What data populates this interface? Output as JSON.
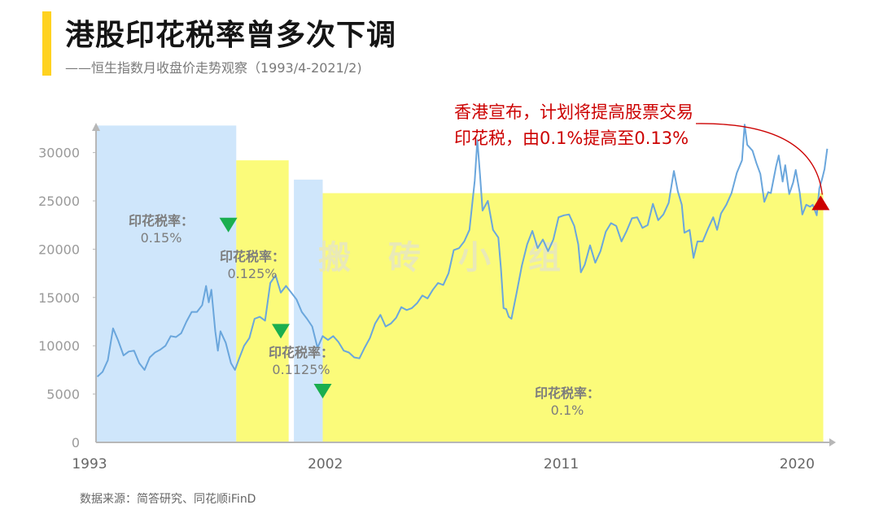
{
  "header": {
    "title": "港股印花税率曾多次下调",
    "subtitle": "——恒生指数月收盘价走势观察（1993/4-2021/2)"
  },
  "footer": {
    "source": "数据来源：简答研究、同花顺iFinD"
  },
  "watermark": "搬 砖 小 组",
  "annotation": {
    "line1": "香港宣布，计划将提高股票交易",
    "line2": "印花税，由0.1%提高至0.13%"
  },
  "colors": {
    "line": "#6aa6dc",
    "band_blue": "#cfe6fb",
    "band_yellow": "#fbfb7a",
    "axis": "#b7b7b7",
    "tick_text": "#9a9a9a",
    "label_text": "#7d7d7d",
    "down_marker": "#1aae4f",
    "up_marker": "#cc0000",
    "annotation_text": "#cc0000",
    "title_accent": "#ffd21f"
  },
  "chart_data": {
    "type": "line",
    "series_name": "恒生指数月收盘价",
    "x_range": [
      1993.25,
      2021.17
    ],
    "ylim": [
      0,
      33000
    ],
    "y_ticks": [
      0,
      5000,
      10000,
      15000,
      20000,
      25000,
      30000
    ],
    "x_ticks": [
      "1993",
      "2002",
      "2011",
      "2020"
    ],
    "rate_bands": [
      {
        "start": 1993.25,
        "end": 1998.6,
        "rate_text": "印花税率：",
        "rate_value": "0.15%",
        "color": "blue",
        "height": 32800
      },
      {
        "start": 1998.6,
        "end": 2000.6,
        "rate_text": "印花税率：",
        "rate_value": "0.125%",
        "color": "yellow",
        "height": 29200
      },
      {
        "start": 2000.8,
        "end": 2001.9,
        "rate_text": "印花税率：",
        "rate_value": "0.1125%",
        "color": "blue",
        "height": 27200
      },
      {
        "start": 2001.9,
        "end": 2021.0,
        "rate_text": "印花税率：",
        "rate_value": "0.1%",
        "color": "yellow",
        "height": 25800
      }
    ],
    "cut_markers": [
      {
        "x": 1998.3,
        "y": 22500,
        "direction": "down"
      },
      {
        "x": 2000.3,
        "y": 11500,
        "direction": "down"
      },
      {
        "x": 2001.9,
        "y": 5300,
        "direction": "down"
      }
    ],
    "hike_marker": {
      "x": 2020.9,
      "y": 24800,
      "direction": "up"
    },
    "points": [
      [
        1993.3,
        6800
      ],
      [
        1993.5,
        7300
      ],
      [
        1993.7,
        8500
      ],
      [
        1993.9,
        11800
      ],
      [
        1994.1,
        10500
      ],
      [
        1994.3,
        9000
      ],
      [
        1994.5,
        9400
      ],
      [
        1994.7,
        9500
      ],
      [
        1994.9,
        8200
      ],
      [
        1995.1,
        7500
      ],
      [
        1995.3,
        8800
      ],
      [
        1995.5,
        9300
      ],
      [
        1995.7,
        9600
      ],
      [
        1995.9,
        10000
      ],
      [
        1996.1,
        11000
      ],
      [
        1996.3,
        10900
      ],
      [
        1996.5,
        11300
      ],
      [
        1996.7,
        12500
      ],
      [
        1996.9,
        13500
      ],
      [
        1997.1,
        13500
      ],
      [
        1997.3,
        14200
      ],
      [
        1997.45,
        16200
      ],
      [
        1997.55,
        14500
      ],
      [
        1997.65,
        15800
      ],
      [
        1997.8,
        11500
      ],
      [
        1997.9,
        9500
      ],
      [
        1998.0,
        11500
      ],
      [
        1998.2,
        10300
      ],
      [
        1998.4,
        8200
      ],
      [
        1998.55,
        7500
      ],
      [
        1998.7,
        8600
      ],
      [
        1998.9,
        10000
      ],
      [
        1999.1,
        10800
      ],
      [
        1999.3,
        12800
      ],
      [
        1999.5,
        13000
      ],
      [
        1999.7,
        12600
      ],
      [
        1999.9,
        16500
      ],
      [
        2000.1,
        17300
      ],
      [
        2000.3,
        15500
      ],
      [
        2000.5,
        16200
      ],
      [
        2000.7,
        15500
      ],
      [
        2000.9,
        14800
      ],
      [
        2001.1,
        13500
      ],
      [
        2001.3,
        12800
      ],
      [
        2001.5,
        12000
      ],
      [
        2001.7,
        9800
      ],
      [
        2001.9,
        11000
      ],
      [
        2002.1,
        10600
      ],
      [
        2002.3,
        11000
      ],
      [
        2002.5,
        10400
      ],
      [
        2002.7,
        9500
      ],
      [
        2002.9,
        9300
      ],
      [
        2003.1,
        8800
      ],
      [
        2003.3,
        8700
      ],
      [
        2003.5,
        9800
      ],
      [
        2003.7,
        10800
      ],
      [
        2003.9,
        12300
      ],
      [
        2004.1,
        13200
      ],
      [
        2004.3,
        12000
      ],
      [
        2004.5,
        12300
      ],
      [
        2004.7,
        12900
      ],
      [
        2004.9,
        14000
      ],
      [
        2005.1,
        13700
      ],
      [
        2005.3,
        13900
      ],
      [
        2005.5,
        14400
      ],
      [
        2005.7,
        15200
      ],
      [
        2005.9,
        14900
      ],
      [
        2006.1,
        15800
      ],
      [
        2006.3,
        16500
      ],
      [
        2006.5,
        16300
      ],
      [
        2006.7,
        17500
      ],
      [
        2006.9,
        19900
      ],
      [
        2007.1,
        20100
      ],
      [
        2007.3,
        20800
      ],
      [
        2007.5,
        22000
      ],
      [
        2007.7,
        27100
      ],
      [
        2007.8,
        31300
      ],
      [
        2007.9,
        27800
      ],
      [
        2008.0,
        24000
      ],
      [
        2008.2,
        25000
      ],
      [
        2008.4,
        22000
      ],
      [
        2008.6,
        21200
      ],
      [
        2008.7,
        18000
      ],
      [
        2008.8,
        13900
      ],
      [
        2008.9,
        13800
      ],
      [
        2009.0,
        13000
      ],
      [
        2009.1,
        12800
      ],
      [
        2009.3,
        15500
      ],
      [
        2009.5,
        18300
      ],
      [
        2009.7,
        20500
      ],
      [
        2009.9,
        21900
      ],
      [
        2010.1,
        20100
      ],
      [
        2010.3,
        21000
      ],
      [
        2010.5,
        19800
      ],
      [
        2010.7,
        21000
      ],
      [
        2010.9,
        23300
      ],
      [
        2011.1,
        23500
      ],
      [
        2011.3,
        23600
      ],
      [
        2011.5,
        22400
      ],
      [
        2011.65,
        20500
      ],
      [
        2011.75,
        17600
      ],
      [
        2011.9,
        18400
      ],
      [
        2012.1,
        20400
      ],
      [
        2012.3,
        18600
      ],
      [
        2012.5,
        19800
      ],
      [
        2012.7,
        21800
      ],
      [
        2012.9,
        22700
      ],
      [
        2013.1,
        22400
      ],
      [
        2013.3,
        20800
      ],
      [
        2013.5,
        21900
      ],
      [
        2013.7,
        23200
      ],
      [
        2013.9,
        23300
      ],
      [
        2014.1,
        22200
      ],
      [
        2014.3,
        22500
      ],
      [
        2014.5,
        24700
      ],
      [
        2014.7,
        23000
      ],
      [
        2014.9,
        23600
      ],
      [
        2015.1,
        24800
      ],
      [
        2015.3,
        28100
      ],
      [
        2015.45,
        26000
      ],
      [
        2015.6,
        24600
      ],
      [
        2015.7,
        21700
      ],
      [
        2015.9,
        22000
      ],
      [
        2016.05,
        19100
      ],
      [
        2016.2,
        20800
      ],
      [
        2016.4,
        20800
      ],
      [
        2016.6,
        22100
      ],
      [
        2016.8,
        23300
      ],
      [
        2016.95,
        22000
      ],
      [
        2017.1,
        23700
      ],
      [
        2017.3,
        24600
      ],
      [
        2017.5,
        25800
      ],
      [
        2017.7,
        27900
      ],
      [
        2017.9,
        29200
      ],
      [
        2018.0,
        32900
      ],
      [
        2018.1,
        30800
      ],
      [
        2018.3,
        30200
      ],
      [
        2018.45,
        28900
      ],
      [
        2018.6,
        27800
      ],
      [
        2018.75,
        24900
      ],
      [
        2018.9,
        25900
      ],
      [
        2019.0,
        25800
      ],
      [
        2019.2,
        28600
      ],
      [
        2019.3,
        29700
      ],
      [
        2019.45,
        27000
      ],
      [
        2019.55,
        28700
      ],
      [
        2019.7,
        25700
      ],
      [
        2019.85,
        26900
      ],
      [
        2019.95,
        28200
      ],
      [
        2020.1,
        25900
      ],
      [
        2020.2,
        23600
      ],
      [
        2020.35,
        24600
      ],
      [
        2020.5,
        24400
      ],
      [
        2020.6,
        24600
      ],
      [
        2020.75,
        23500
      ],
      [
        2020.85,
        26300
      ],
      [
        2020.95,
        27200
      ],
      [
        2021.05,
        28300
      ],
      [
        2021.15,
        30400
      ]
    ]
  }
}
